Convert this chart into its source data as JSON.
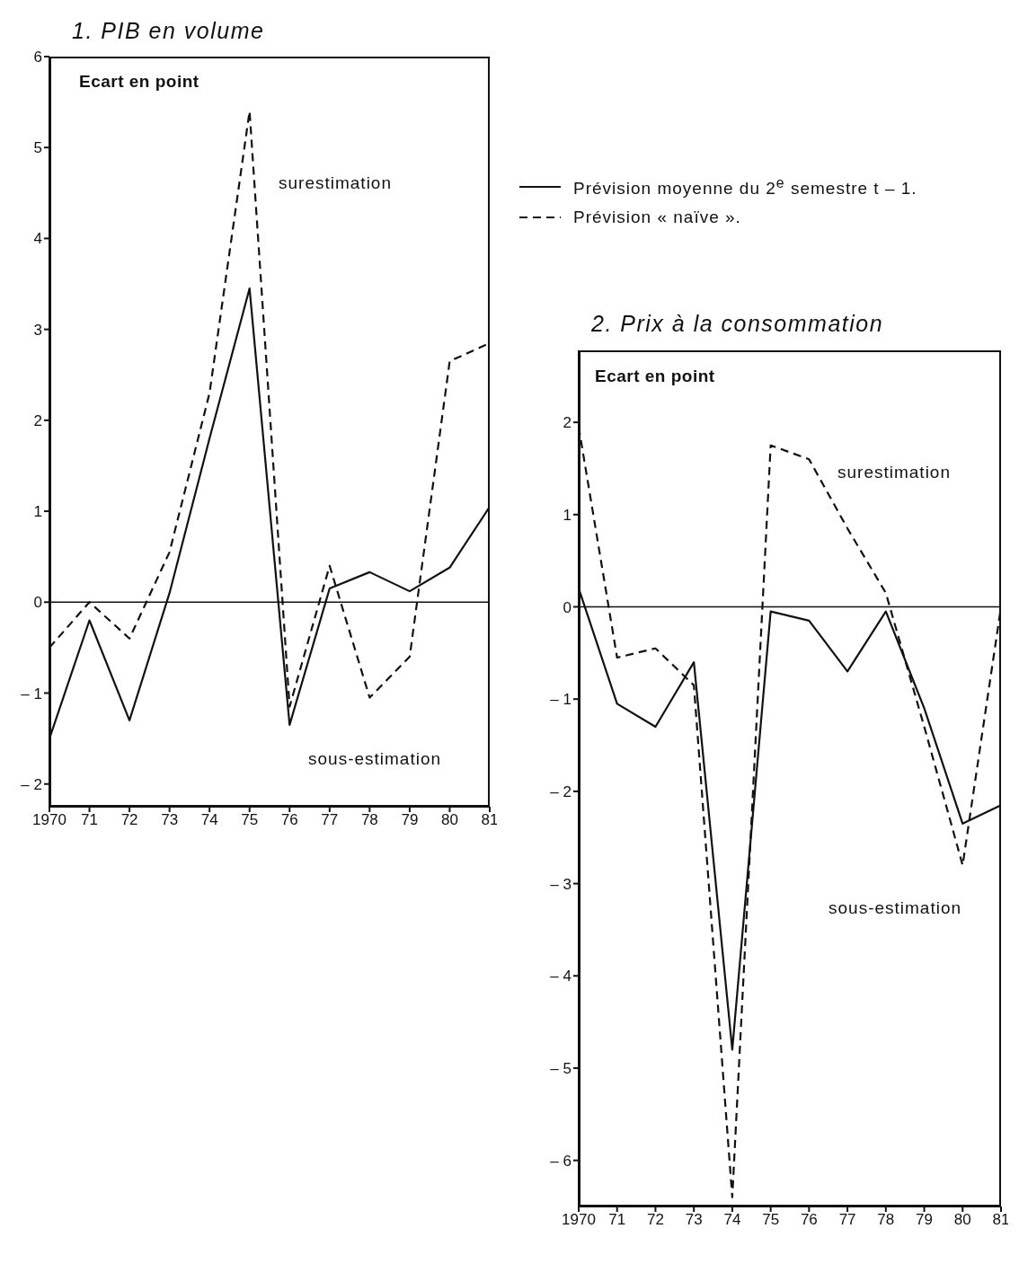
{
  "chart_data": [
    {
      "type": "line",
      "title": "1. PIB en volume",
      "annotations": [
        "Ecart en point",
        "surestimation",
        "sous-estimation"
      ],
      "legend": "right",
      "marker": "none",
      "x": [
        1970,
        1971,
        1972,
        1973,
        1974,
        1975,
        1976,
        1977,
        1978,
        1979,
        1980,
        1981
      ],
      "series": [
        {
          "name": "Prévision moyenne du 2$^{e}$ semestre t – 1.",
          "color": "#111111",
          "line_style": "solid",
          "values": [
            -1.5,
            -0.2,
            -1.3,
            0.1,
            1.8,
            3.45,
            -1.35,
            0.15,
            0.33,
            0.12,
            0.38,
            1.05
          ]
        },
        {
          "name": "Prévision « naïve ».",
          "color": "#111111",
          "line_style": "dashed",
          "values": [
            -0.5,
            0.0,
            -0.4,
            0.55,
            2.3,
            5.4,
            -1.15,
            0.4,
            -1.05,
            -0.6,
            2.65,
            2.85
          ]
        }
      ],
      "xlim": [
        1970,
        1981
      ],
      "xticks": [
        {
          "value": 1970,
          "label": "1970"
        },
        {
          "value": 1971,
          "label": "71"
        },
        {
          "value": 1972,
          "label": "72"
        },
        {
          "value": 1973,
          "label": "73"
        },
        {
          "value": 1974,
          "label": "74"
        },
        {
          "value": 1975,
          "label": "75"
        },
        {
          "value": 1976,
          "label": "76"
        },
        {
          "value": 1977,
          "label": "77"
        },
        {
          "value": 1978,
          "label": "78"
        },
        {
          "value": 1979,
          "label": "79"
        },
        {
          "value": 1980,
          "label": "80"
        },
        {
          "value": 1981,
          "label": "81"
        }
      ],
      "ylim": [
        -2.25,
        6
      ],
      "yticks": [
        {
          "value": -2,
          "label": "– 2"
        },
        {
          "value": -1,
          "label": "– 1"
        },
        0,
        1,
        2,
        3,
        4,
        5,
        6
      ],
      "ref_lines": [
        {
          "axis": "y",
          "value": 0,
          "color": "#111111"
        }
      ]
    },
    {
      "type": "line",
      "title": "2. Prix à la consommation",
      "annotations": [
        "Ecart en point",
        "surestimation",
        "sous-estimation"
      ],
      "marker": "none",
      "x": [
        1970,
        1971,
        1972,
        1973,
        1974,
        1975,
        1976,
        1977,
        1978,
        1979,
        1980,
        1981
      ],
      "series": [
        {
          "color": "#111111",
          "line_style": "solid",
          "values": [
            0.2,
            -1.05,
            -1.3,
            -0.6,
            -4.8,
            -0.05,
            -0.15,
            -0.7,
            -0.05,
            -1.1,
            -2.35,
            -2.15
          ]
        },
        {
          "color": "#111111",
          "line_style": "dashed",
          "values": [
            1.95,
            -0.55,
            -0.45,
            -0.85,
            -6.4,
            1.75,
            1.6,
            0.85,
            0.15,
            -1.3,
            -2.8,
            0
          ]
        }
      ],
      "xlim": [
        1970,
        1981
      ],
      "xticks": [
        {
          "value": 1970,
          "label": "1970"
        },
        {
          "value": 1971,
          "label": "71"
        },
        {
          "value": 1972,
          "label": "72"
        },
        {
          "value": 1973,
          "label": "73"
        },
        {
          "value": 1974,
          "label": "74"
        },
        {
          "value": 1975,
          "label": "75"
        },
        {
          "value": 1976,
          "label": "76"
        },
        {
          "value": 1977,
          "label": "77"
        },
        {
          "value": 1978,
          "label": "78"
        },
        {
          "value": 1979,
          "label": "79"
        },
        {
          "value": 1980,
          "label": "80"
        },
        {
          "value": 1981,
          "label": "81"
        }
      ],
      "ylim": [
        -6.5,
        2.78
      ],
      "yticks": [
        {
          "value": -6,
          "label": "– 6"
        },
        {
          "value": -5,
          "label": "– 5"
        },
        {
          "value": -4,
          "label": "– 4"
        },
        {
          "value": -3,
          "label": "– 3"
        },
        {
          "value": -2,
          "label": "– 2"
        },
        {
          "value": -1,
          "label": "– 1"
        },
        0,
        1,
        2
      ],
      "ref_lines": [
        {
          "axis": "y",
          "value": 0,
          "color": "#111111"
        }
      ]
    }
  ]
}
